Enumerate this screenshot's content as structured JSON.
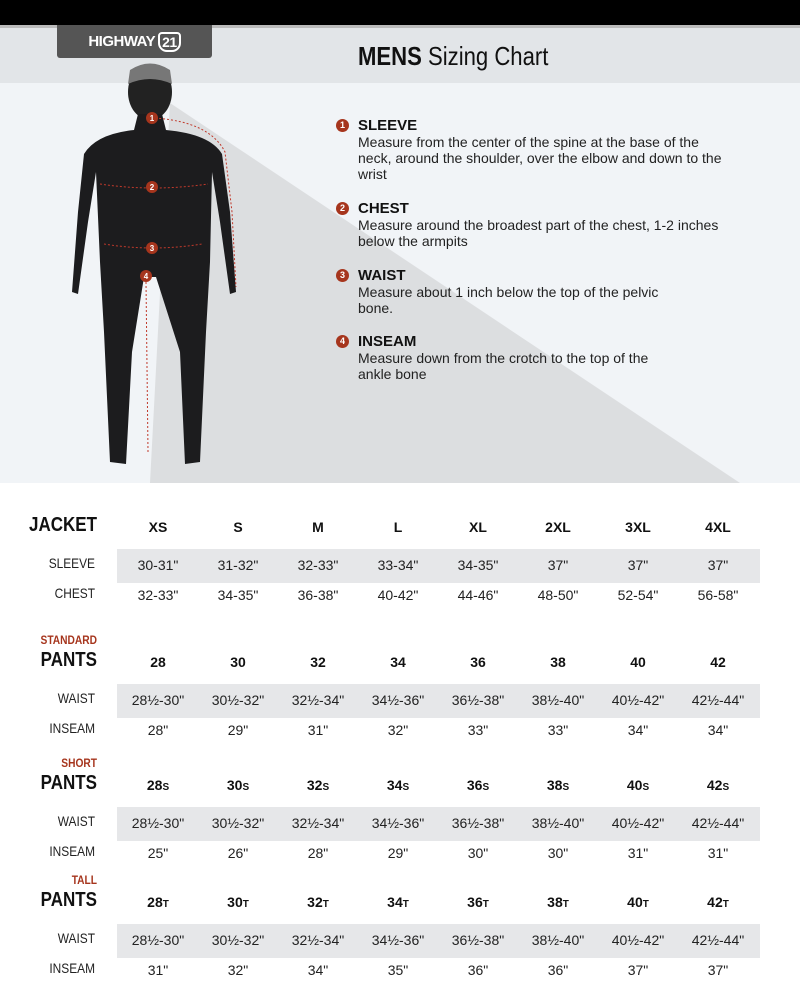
{
  "brand": {
    "logo_text": "HIGHWAY",
    "logo_number": "21"
  },
  "header": {
    "title_bold": "MENS",
    "title_rest": "Sizing Chart"
  },
  "colors": {
    "accent": "#a6351d",
    "header_bg": "#e2e5e8",
    "row_shade": "#e6e7e9",
    "logo_bg": "#555555"
  },
  "instructions": [
    {
      "num": "1",
      "title": "SLEEVE",
      "text": "Measure from the center of the spine at the base of the neck, around the shoulder, over the elbow and down to the wrist"
    },
    {
      "num": "2",
      "title": "CHEST",
      "text": "Measure around the broadest part of the chest, 1-2 inches below the armpits"
    },
    {
      "num": "3",
      "title": "WAIST",
      "text": "Measure about 1 inch below the top of the pelvic bone."
    },
    {
      "num": "4",
      "title": "INSEAM",
      "text": "Measure down from the crotch to the top of the ankle bone"
    }
  ],
  "tables": [
    {
      "subtitle": "",
      "title": "JACKET",
      "sizes": [
        "XS",
        "S",
        "M",
        "L",
        "XL",
        "2XL",
        "3XL",
        "4XL"
      ],
      "suffix": "",
      "rows": [
        {
          "label": "SLEEVE",
          "values": [
            "30-31\"",
            "31-32\"",
            "32-33\"",
            "33-34\"",
            "34-35\"",
            "37\"",
            "37\"",
            "37\""
          ]
        },
        {
          "label": "CHEST",
          "values": [
            "32-33\"",
            "34-35\"",
            "36-38\"",
            "40-42\"",
            "44-46\"",
            "48-50\"",
            "52-54\"",
            "56-58\""
          ]
        }
      ]
    },
    {
      "subtitle": "STANDARD",
      "title": "PANTS",
      "sizes": [
        "28",
        "30",
        "32",
        "34",
        "36",
        "38",
        "40",
        "42"
      ],
      "suffix": "",
      "rows": [
        {
          "label": "WAIST",
          "values": [
            "28½-30\"",
            "30½-32\"",
            "32½-34\"",
            "34½-36\"",
            "36½-38\"",
            "38½-40\"",
            "40½-42\"",
            "42½-44\""
          ]
        },
        {
          "label": "INSEAM",
          "values": [
            "28\"",
            "29\"",
            "31\"",
            "32\"",
            "33\"",
            "33\"",
            "34\"",
            "34\""
          ]
        }
      ]
    },
    {
      "subtitle": "SHORT",
      "title": "PANTS",
      "sizes": [
        "28",
        "30",
        "32",
        "34",
        "36",
        "38",
        "40",
        "42"
      ],
      "suffix": "S",
      "rows": [
        {
          "label": "WAIST",
          "values": [
            "28½-30\"",
            "30½-32\"",
            "32½-34\"",
            "34½-36\"",
            "36½-38\"",
            "38½-40\"",
            "40½-42\"",
            "42½-44\""
          ]
        },
        {
          "label": "INSEAM",
          "values": [
            "25\"",
            "26\"",
            "28\"",
            "29\"",
            "30\"",
            "30\"",
            "31\"",
            "31\""
          ]
        }
      ]
    },
    {
      "subtitle": "TALL",
      "title": "PANTS",
      "sizes": [
        "28",
        "30",
        "32",
        "34",
        "36",
        "38",
        "40",
        "42"
      ],
      "suffix": "T",
      "rows": [
        {
          "label": "WAIST",
          "values": [
            "28½-30\"",
            "30½-32\"",
            "32½-34\"",
            "34½-36\"",
            "36½-38\"",
            "38½-40\"",
            "40½-42\"",
            "42½-44\""
          ]
        },
        {
          "label": "INSEAM",
          "values": [
            "31\"",
            "32\"",
            "34\"",
            "35\"",
            "36\"",
            "36\"",
            "37\"",
            "37\""
          ]
        }
      ]
    }
  ]
}
